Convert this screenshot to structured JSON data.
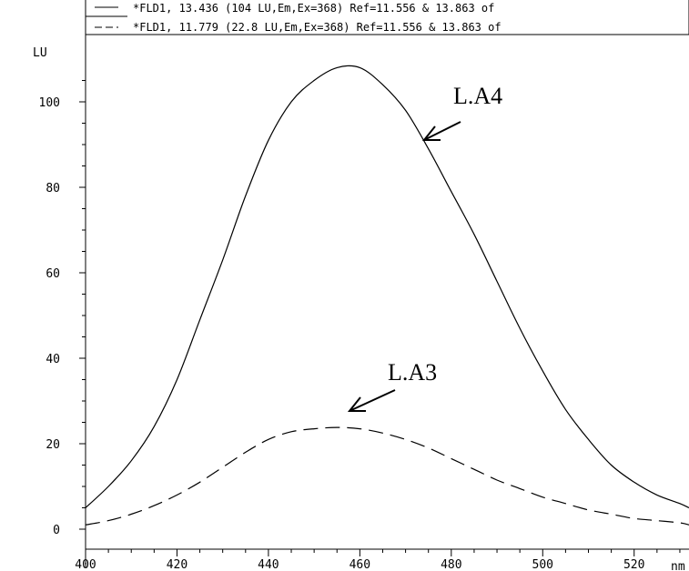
{
  "chart_data": {
    "type": "line",
    "title": "",
    "xlabel": "",
    "ylabel": "",
    "x_unit": "nm",
    "y_unit": "LU",
    "xlim": [
      400,
      532
    ],
    "ylim": [
      -3,
      112
    ],
    "xticks": [
      "400",
      "420",
      "440",
      "460",
      "480",
      "500",
      "520"
    ],
    "yticks": [
      "0",
      "20",
      "40",
      "60",
      "80",
      "100"
    ],
    "grid": false,
    "legend_position": "top-left",
    "series": [
      {
        "name": "*FLD1, 13.436 (104 LU,Em,Ex=368) Ref=11.556 & 13.863 of",
        "style": "solid",
        "color": "#000000",
        "x": [
          400,
          405,
          410,
          415,
          420,
          425,
          430,
          435,
          440,
          445,
          450,
          455,
          460,
          465,
          470,
          475,
          480,
          485,
          490,
          495,
          500,
          505,
          510,
          515,
          520,
          525,
          530,
          532
        ],
        "y": [
          5,
          10,
          16,
          24,
          35,
          49,
          63,
          78,
          91,
          100,
          105,
          108,
          108,
          104,
          98,
          89,
          79,
          69,
          58,
          47,
          37,
          28,
          21,
          15,
          11,
          8,
          6,
          5
        ]
      },
      {
        "name": "*FLD1, 11.779 (22.8 LU,Em,Ex=368) Ref=11.556 & 13.863 of",
        "style": "dashed",
        "color": "#000000",
        "x": [
          400,
          405,
          410,
          415,
          420,
          425,
          430,
          435,
          440,
          445,
          450,
          455,
          460,
          465,
          470,
          475,
          480,
          485,
          490,
          495,
          500,
          505,
          510,
          515,
          520,
          525,
          530,
          532
        ],
        "y": [
          1,
          2,
          3.5,
          5.5,
          8,
          11,
          14.5,
          18,
          21,
          22.8,
          23.5,
          23.8,
          23.5,
          22.5,
          21,
          19,
          16.5,
          14,
          11.5,
          9.5,
          7.5,
          6,
          4.5,
          3.5,
          2.5,
          2,
          1.5,
          1
        ]
      }
    ],
    "annotations": [
      {
        "text": "L.A4",
        "points_to_series": 0
      },
      {
        "text": "L.A3",
        "points_to_series": 1
      }
    ]
  }
}
